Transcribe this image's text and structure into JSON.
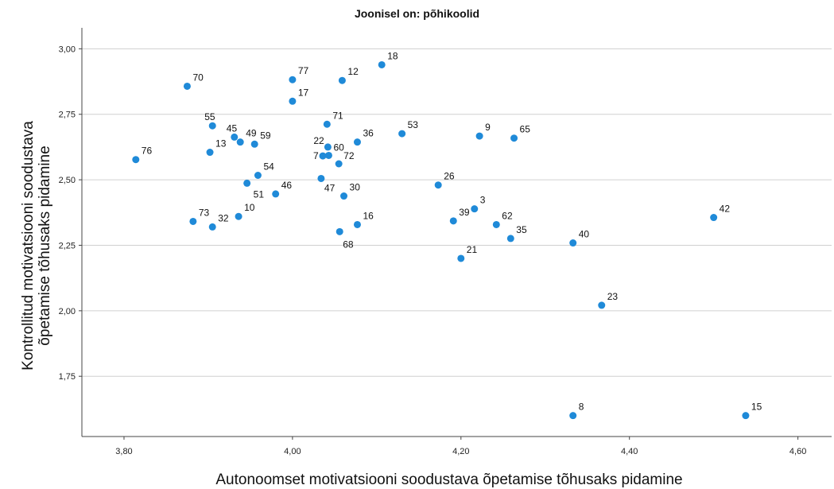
{
  "chart_data": {
    "type": "scatter",
    "title": "Joonisel on: põhikoolid",
    "xlabel": "Autonoomset motivatsiooni soodustava õpetamise tõhusaks pidamine",
    "ylabel": "Kontrollitud motivatsiooni soodustava õpetamise tõhusaks pidamine",
    "xlim": [
      3.75,
      4.64
    ],
    "ylim": [
      1.52,
      3.08
    ],
    "x_ticks": [
      {
        "value": 3.8,
        "label": "3,80"
      },
      {
        "value": 4.0,
        "label": "4,00"
      },
      {
        "value": 4.2,
        "label": "4,20"
      },
      {
        "value": 4.4,
        "label": "4,40"
      },
      {
        "value": 4.6,
        "label": "4,60"
      }
    ],
    "y_ticks": [
      {
        "value": 1.75,
        "label": "1,75"
      },
      {
        "value": 2.0,
        "label": "2,00"
      },
      {
        "value": 2.25,
        "label": "2,25"
      },
      {
        "value": 2.5,
        "label": "2,50"
      },
      {
        "value": 2.75,
        "label": "2,75"
      },
      {
        "value": 3.0,
        "label": "3,00"
      }
    ],
    "grid": "horizontal",
    "point_color": "#1f8ad8",
    "points": [
      {
        "label": "18",
        "x": 4.106,
        "y": 2.939
      },
      {
        "label": "77",
        "x": 4.0,
        "y": 2.882
      },
      {
        "label": "12",
        "x": 4.059,
        "y": 2.879
      },
      {
        "label": "70",
        "x": 3.875,
        "y": 2.857
      },
      {
        "label": "17",
        "x": 4.0,
        "y": 2.8
      },
      {
        "label": "55",
        "x": 3.905,
        "y": 2.706
      },
      {
        "label": "71",
        "x": 4.041,
        "y": 2.712
      },
      {
        "label": "53",
        "x": 4.13,
        "y": 2.676
      },
      {
        "label": "45",
        "x": 3.931,
        "y": 2.663
      },
      {
        "label": "49",
        "x": 3.938,
        "y": 2.644
      },
      {
        "label": "59",
        "x": 3.955,
        "y": 2.636
      },
      {
        "label": "9",
        "x": 4.222,
        "y": 2.667
      },
      {
        "label": "65",
        "x": 4.263,
        "y": 2.659
      },
      {
        "label": "36",
        "x": 4.077,
        "y": 2.644
      },
      {
        "label": "22",
        "x": 4.042,
        "y": 2.625
      },
      {
        "label": "13",
        "x": 3.902,
        "y": 2.605
      },
      {
        "label": "76",
        "x": 3.814,
        "y": 2.577
      },
      {
        "label": "7",
        "x": 4.036,
        "y": 2.591
      },
      {
        "label": "60",
        "x": 4.043,
        "y": 2.593
      },
      {
        "label": "72",
        "x": 4.055,
        "y": 2.561
      },
      {
        "label": "54",
        "x": 3.959,
        "y": 2.517
      },
      {
        "label": "47",
        "x": 4.034,
        "y": 2.505
      },
      {
        "label": "26",
        "x": 4.173,
        "y": 2.48
      },
      {
        "label": "51",
        "x": 3.946,
        "y": 2.487
      },
      {
        "label": "46",
        "x": 3.98,
        "y": 2.446
      },
      {
        "label": "30",
        "x": 4.061,
        "y": 2.438
      },
      {
        "label": "3",
        "x": 4.216,
        "y": 2.389
      },
      {
        "label": "42",
        "x": 4.5,
        "y": 2.356
      },
      {
        "label": "73",
        "x": 3.882,
        "y": 2.341
      },
      {
        "label": "10",
        "x": 3.936,
        "y": 2.36
      },
      {
        "label": "39",
        "x": 4.191,
        "y": 2.343
      },
      {
        "label": "32",
        "x": 3.905,
        "y": 2.32
      },
      {
        "label": "16",
        "x": 4.077,
        "y": 2.329
      },
      {
        "label": "62",
        "x": 4.242,
        "y": 2.329
      },
      {
        "label": "68",
        "x": 4.056,
        "y": 2.302
      },
      {
        "label": "35",
        "x": 4.259,
        "y": 2.276
      },
      {
        "label": "40",
        "x": 4.333,
        "y": 2.259
      },
      {
        "label": "21",
        "x": 4.2,
        "y": 2.2
      },
      {
        "label": "23",
        "x": 4.367,
        "y": 2.021
      },
      {
        "label": "8",
        "x": 4.333,
        "y": 1.6
      },
      {
        "label": "15",
        "x": 4.538,
        "y": 1.6
      }
    ]
  }
}
